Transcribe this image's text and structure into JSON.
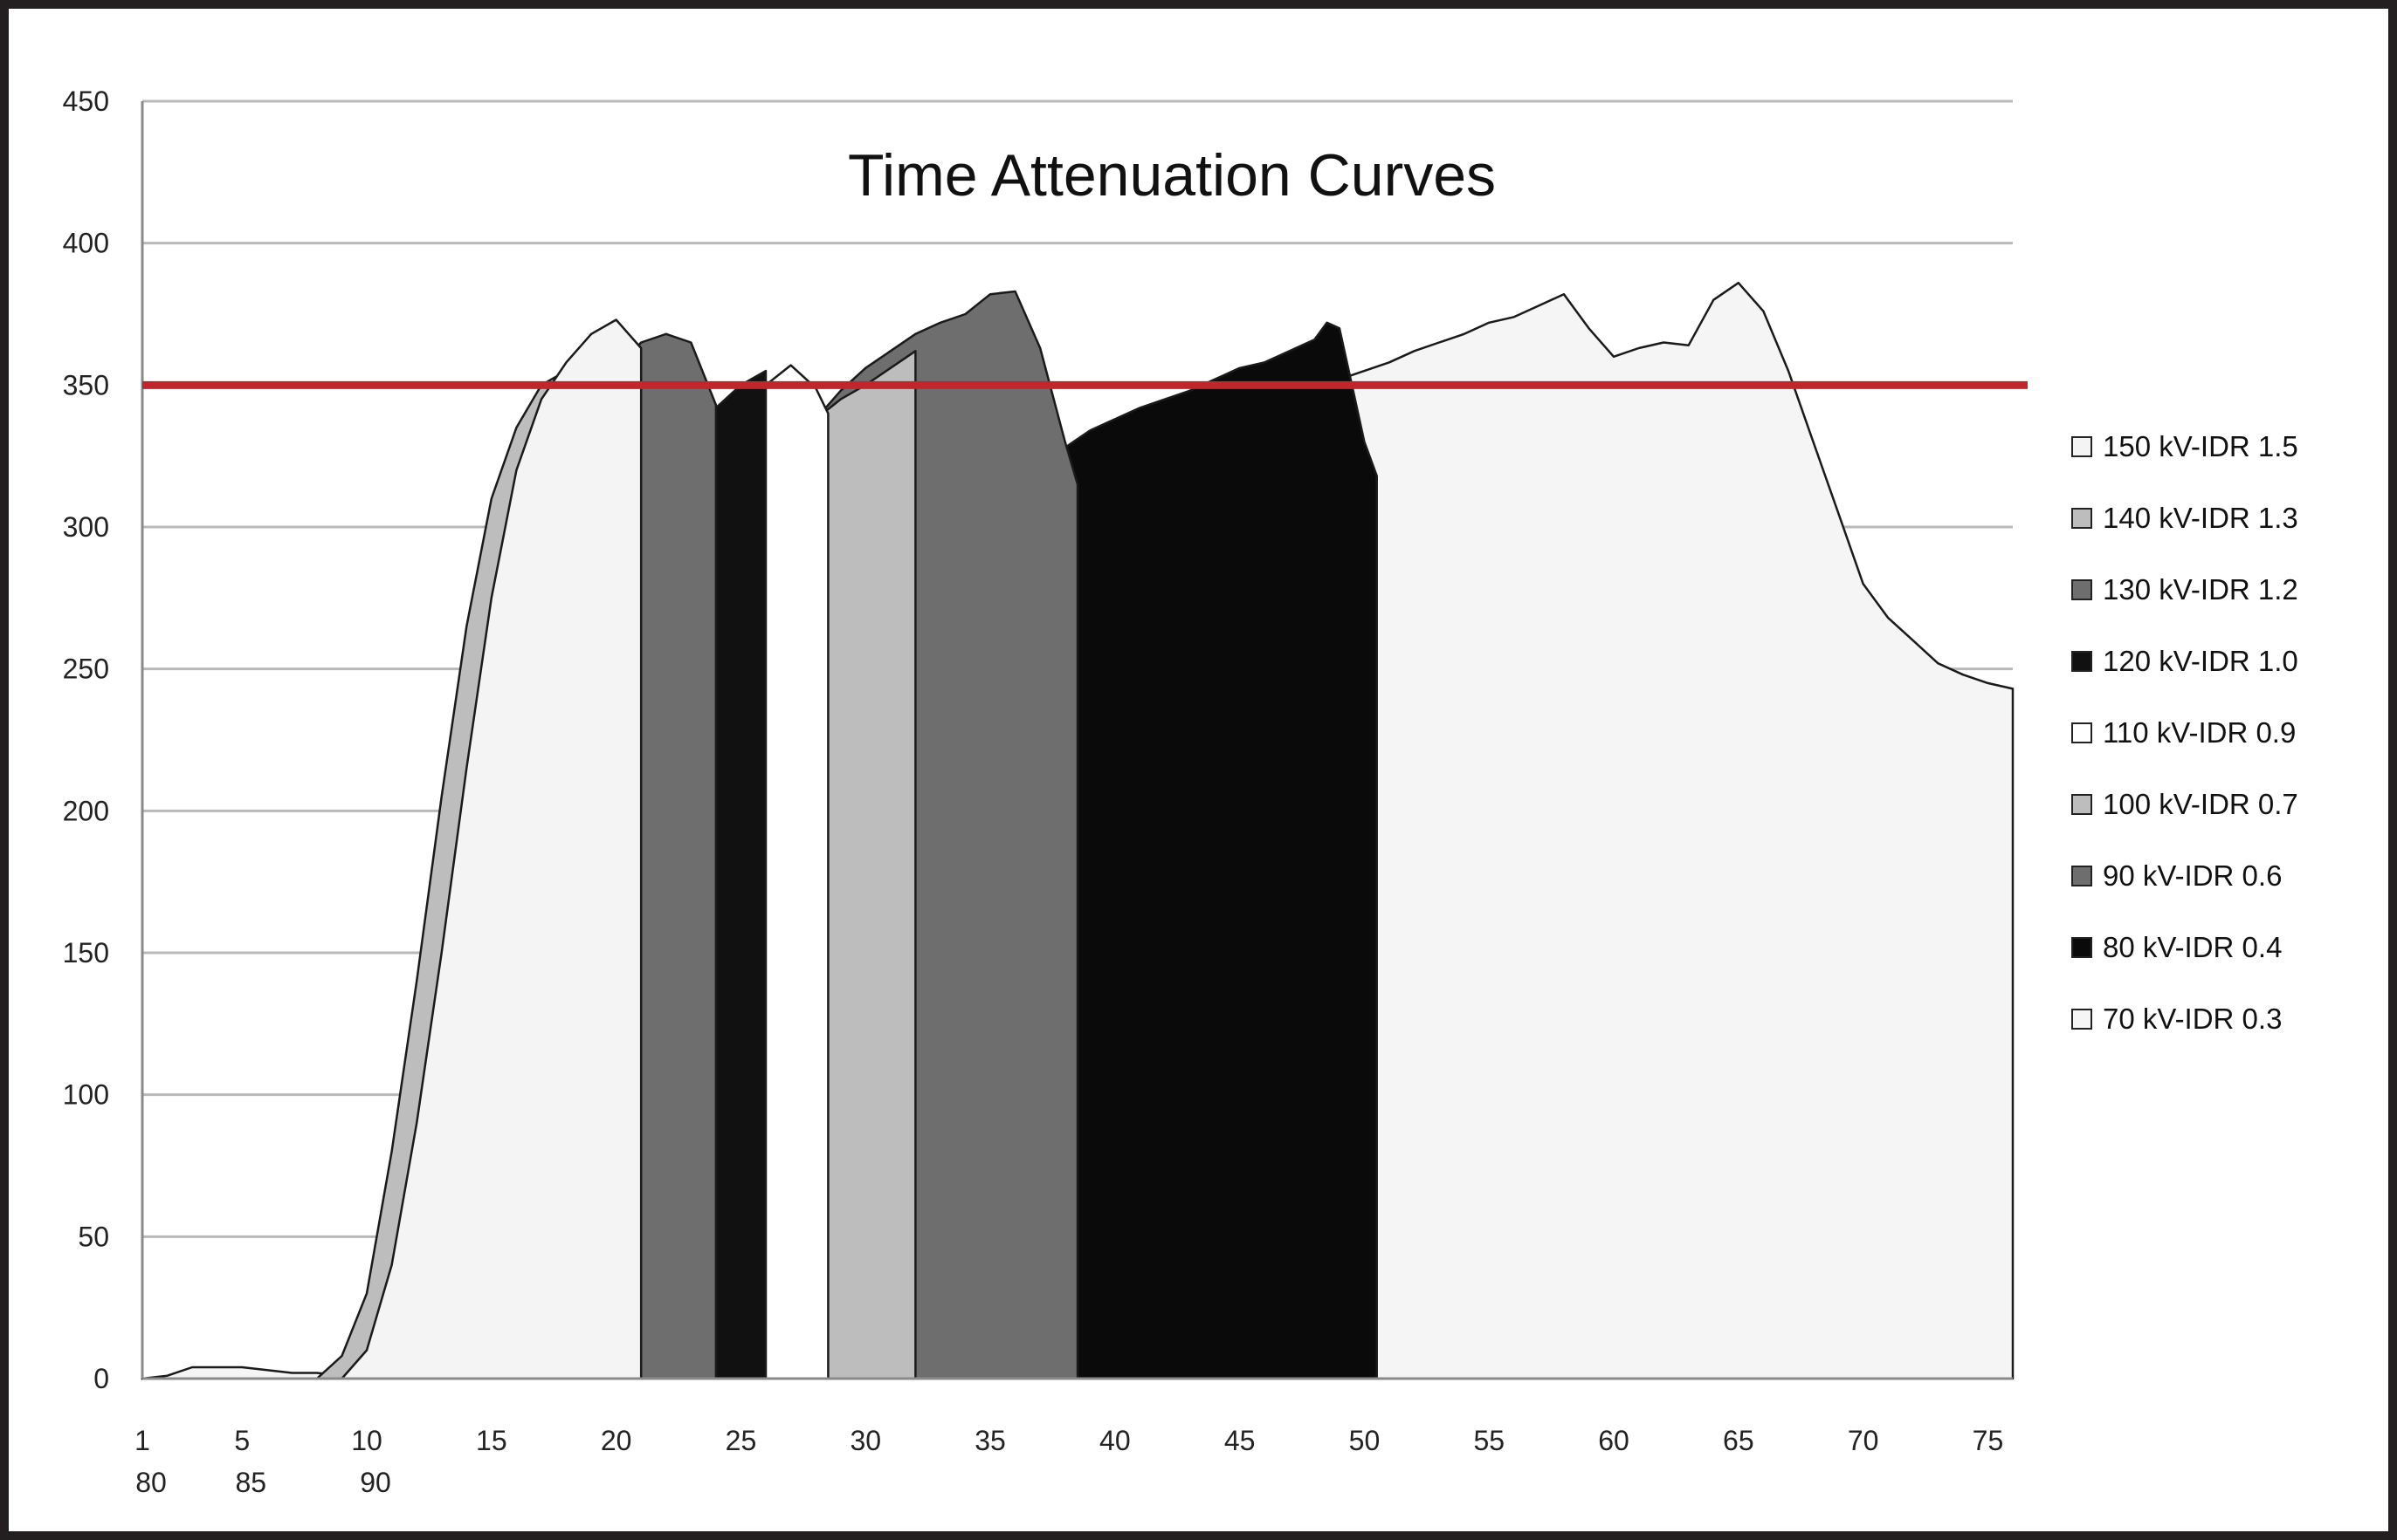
{
  "chart_data": {
    "type": "area",
    "title": "Time Attenuation Curves",
    "xlabel": "",
    "ylabel": "",
    "ylim": [
      0,
      450
    ],
    "xlim": [
      1,
      76
    ],
    "y_ticks": [
      "0",
      "50",
      "100",
      "150",
      "200",
      "250",
      "300",
      "350",
      "400",
      "450"
    ],
    "x_ticks": [
      "1",
      "5",
      "10",
      "15",
      "20",
      "25",
      "30",
      "35",
      "40",
      "45",
      "50",
      "55",
      "60",
      "65",
      "70",
      "75"
    ],
    "x_ticks_secondary": [
      "80",
      "85",
      "90"
    ],
    "threshold": {
      "value": 350,
      "color": "#c0272d"
    },
    "grid": true,
    "legend_position": "right",
    "series": [
      {
        "name": "150 kV-IDR 1.5",
        "color": "#f4f4f4",
        "points": [
          [
            1,
            0
          ],
          [
            9,
            0
          ],
          [
            10,
            10
          ],
          [
            11,
            40
          ],
          [
            12,
            90
          ],
          [
            13,
            150
          ],
          [
            14,
            215
          ],
          [
            15,
            275
          ],
          [
            16,
            320
          ],
          [
            17,
            345
          ],
          [
            18,
            358
          ],
          [
            19,
            368
          ],
          [
            20,
            373
          ],
          [
            21,
            363
          ]
        ]
      },
      {
        "name": "140 kV-IDR 1.3",
        "color": "#bdbdbd",
        "points": [
          [
            1,
            0
          ],
          [
            8,
            0
          ],
          [
            9,
            8
          ],
          [
            10,
            30
          ],
          [
            11,
            80
          ],
          [
            12,
            140
          ],
          [
            13,
            205
          ],
          [
            14,
            265
          ],
          [
            15,
            310
          ],
          [
            16,
            335
          ],
          [
            17,
            350
          ],
          [
            18,
            355
          ],
          [
            19,
            358
          ],
          [
            20,
            360
          ]
        ]
      },
      {
        "name": "130 kV-IDR 1.2",
        "color": "#6e6e6e",
        "points": [
          [
            1,
            0
          ],
          [
            10,
            0
          ],
          [
            11,
            15
          ],
          [
            12,
            55
          ],
          [
            13,
            110
          ],
          [
            14,
            170
          ],
          [
            15,
            225
          ],
          [
            16,
            270
          ],
          [
            17,
            300
          ],
          [
            18,
            320
          ],
          [
            19,
            340
          ],
          [
            20,
            355
          ],
          [
            21,
            365
          ],
          [
            22,
            368
          ],
          [
            23,
            365
          ],
          [
            24,
            343
          ]
        ]
      },
      {
        "name": "120 kV-IDR 1.0",
        "color": "#111111",
        "points": [
          [
            1,
            0
          ],
          [
            11,
            0
          ],
          [
            12,
            10
          ],
          [
            13,
            40
          ],
          [
            14,
            95
          ],
          [
            15,
            160
          ],
          [
            16,
            215
          ],
          [
            17,
            255
          ],
          [
            18,
            280
          ],
          [
            19,
            298
          ],
          [
            20,
            310
          ],
          [
            21,
            318
          ],
          [
            22,
            325
          ],
          [
            23,
            333
          ],
          [
            24,
            342
          ],
          [
            25,
            350
          ],
          [
            26,
            355
          ]
        ]
      },
      {
        "name": "110 kV-IDR 0.9",
        "color": "#ffffff",
        "points": [
          [
            1,
            0
          ],
          [
            11,
            0
          ],
          [
            12,
            15
          ],
          [
            13,
            50
          ],
          [
            14,
            105
          ],
          [
            15,
            165
          ],
          [
            16,
            215
          ],
          [
            17,
            255
          ],
          [
            18,
            280
          ],
          [
            19,
            300
          ],
          [
            20,
            312
          ],
          [
            21,
            318
          ],
          [
            22,
            325
          ],
          [
            23,
            330
          ],
          [
            24,
            335
          ],
          [
            25,
            342
          ],
          [
            26,
            350
          ],
          [
            27,
            357
          ],
          [
            28,
            349
          ],
          [
            28.5,
            340
          ]
        ]
      },
      {
        "name": "100 kV-IDR 0.7",
        "color": "#bdbdbd",
        "points": [
          [
            1,
            0
          ],
          [
            11,
            0
          ],
          [
            12,
            10
          ],
          [
            13,
            40
          ],
          [
            14,
            90
          ],
          [
            15,
            150
          ],
          [
            16,
            200
          ],
          [
            17,
            240
          ],
          [
            18,
            265
          ],
          [
            19,
            275
          ],
          [
            20,
            282
          ],
          [
            21,
            288
          ],
          [
            22,
            294
          ],
          [
            23,
            300
          ],
          [
            24,
            306
          ],
          [
            25,
            312
          ],
          [
            26,
            322
          ],
          [
            27,
            330
          ],
          [
            28,
            338
          ],
          [
            29,
            345
          ],
          [
            30,
            350
          ],
          [
            31,
            356
          ],
          [
            32,
            362
          ]
        ]
      },
      {
        "name": "90 kV-IDR 0.6",
        "color": "#6e6e6e",
        "points": [
          [
            1,
            0
          ],
          [
            11,
            0
          ],
          [
            12,
            8
          ],
          [
            13,
            30
          ],
          [
            14,
            75
          ],
          [
            15,
            130
          ],
          [
            16,
            180
          ],
          [
            17,
            225
          ],
          [
            18,
            262
          ],
          [
            19,
            272
          ],
          [
            20,
            278
          ],
          [
            21,
            282
          ],
          [
            22,
            288
          ],
          [
            23,
            294
          ],
          [
            24,
            300
          ],
          [
            25,
            308
          ],
          [
            26,
            318
          ],
          [
            27,
            328
          ],
          [
            28,
            338
          ],
          [
            29,
            348
          ],
          [
            30,
            356
          ],
          [
            31,
            362
          ],
          [
            32,
            368
          ],
          [
            33,
            372
          ],
          [
            34,
            375
          ],
          [
            35,
            382
          ],
          [
            36,
            383
          ],
          [
            37,
            363
          ],
          [
            38,
            330
          ],
          [
            38.5,
            315
          ]
        ]
      },
      {
        "name": "80 kV-IDR 0.4",
        "color": "#0a0a0a",
        "points": [
          [
            1,
            0
          ],
          [
            10,
            0
          ],
          [
            11,
            2
          ],
          [
            12,
            10
          ],
          [
            13,
            30
          ],
          [
            14,
            65
          ],
          [
            15,
            105
          ],
          [
            16,
            150
          ],
          [
            17,
            185
          ],
          [
            18,
            200
          ],
          [
            19,
            206
          ],
          [
            20,
            212
          ],
          [
            21,
            218
          ],
          [
            22,
            224
          ],
          [
            23,
            230
          ],
          [
            24,
            238
          ],
          [
            25,
            246
          ],
          [
            26,
            254
          ],
          [
            27,
            262
          ],
          [
            28,
            270
          ],
          [
            29,
            278
          ],
          [
            30,
            285
          ],
          [
            31,
            290
          ],
          [
            32,
            295
          ],
          [
            33,
            300
          ],
          [
            34,
            307
          ],
          [
            35,
            313
          ],
          [
            36,
            318
          ],
          [
            37,
            322
          ],
          [
            38,
            328
          ],
          [
            39,
            334
          ],
          [
            40,
            338
          ],
          [
            41,
            342
          ],
          [
            42,
            345
          ],
          [
            43,
            348
          ],
          [
            44,
            352
          ],
          [
            45,
            356
          ],
          [
            46,
            358
          ],
          [
            47,
            362
          ],
          [
            48,
            366
          ],
          [
            48.5,
            372
          ],
          [
            49,
            370
          ],
          [
            49.5,
            350
          ],
          [
            50,
            330
          ],
          [
            50.5,
            318
          ]
        ]
      },
      {
        "name": "70 kV-IDR 0.3",
        "color": "#f5f5f5",
        "points": [
          [
            1,
            0
          ],
          [
            2,
            1
          ],
          [
            3,
            4
          ],
          [
            4,
            4
          ],
          [
            5,
            4
          ],
          [
            6,
            3
          ],
          [
            7,
            2
          ],
          [
            8,
            2
          ],
          [
            9,
            1
          ],
          [
            10,
            2
          ],
          [
            11,
            3
          ],
          [
            12,
            6
          ],
          [
            13,
            10
          ],
          [
            14,
            20
          ],
          [
            15,
            45
          ],
          [
            16,
            80
          ],
          [
            17,
            120
          ],
          [
            18,
            160
          ],
          [
            19,
            185
          ],
          [
            20,
            195
          ],
          [
            21,
            205
          ],
          [
            22,
            215
          ],
          [
            23,
            225
          ],
          [
            24,
            232
          ],
          [
            25,
            240
          ],
          [
            26,
            248
          ],
          [
            27,
            256
          ],
          [
            28,
            262
          ],
          [
            29,
            268
          ],
          [
            30,
            275
          ],
          [
            31,
            280
          ],
          [
            32,
            285
          ],
          [
            33,
            290
          ],
          [
            34,
            295
          ],
          [
            35,
            298
          ],
          [
            36,
            302
          ],
          [
            37,
            305
          ],
          [
            38,
            308
          ],
          [
            39,
            312
          ],
          [
            40,
            316
          ],
          [
            41,
            320
          ],
          [
            42,
            325
          ],
          [
            43,
            329
          ],
          [
            44,
            333
          ],
          [
            45,
            337
          ],
          [
            46,
            340
          ],
          [
            47,
            344
          ],
          [
            48,
            348
          ],
          [
            49,
            352
          ],
          [
            50,
            355
          ],
          [
            51,
            358
          ],
          [
            52,
            362
          ],
          [
            53,
            365
          ],
          [
            54,
            368
          ],
          [
            55,
            372
          ],
          [
            56,
            374
          ],
          [
            57,
            378
          ],
          [
            58,
            382
          ],
          [
            59,
            370
          ],
          [
            60,
            360
          ],
          [
            61,
            363
          ],
          [
            62,
            365
          ],
          [
            63,
            364
          ],
          [
            64,
            380
          ],
          [
            65,
            386
          ],
          [
            66,
            376
          ],
          [
            67,
            355
          ],
          [
            68,
            330
          ],
          [
            69,
            305
          ],
          [
            70,
            280
          ],
          [
            71,
            268
          ],
          [
            72,
            260
          ],
          [
            73,
            252
          ],
          [
            74,
            248
          ],
          [
            75,
            245
          ],
          [
            76,
            243
          ]
        ]
      }
    ]
  }
}
